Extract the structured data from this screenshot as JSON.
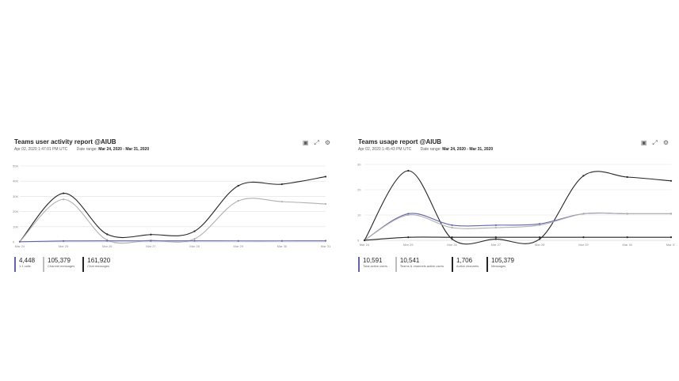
{
  "cards": [
    {
      "title": "Teams user activity report @AIUB",
      "timestamp": "Apr 02, 2020 1:47:01 PM UTC",
      "date_range_label": "Date range:",
      "date_range_value": "Mar 24, 2020 - Mar 31, 2020",
      "icons": [
        "excel-icon",
        "expand-icon",
        "gear-icon"
      ],
      "kpis": [
        {
          "value": "4,448",
          "label": "1:1 calls",
          "color": "#6264a7"
        },
        {
          "value": "105,379",
          "label": "Channel messages",
          "color": "#bdbdbd"
        },
        {
          "value": "161,920",
          "label": "Chat messages",
          "color": "#252423"
        }
      ]
    },
    {
      "title": "Teams usage report @AIUB",
      "timestamp": "Apr 02, 2020 1:45:43 PM UTC",
      "date_range_label": "Date range:",
      "date_range_value": "Mar 24, 2020 - Mar 31, 2020",
      "icons": [
        "excel-icon",
        "expand-icon",
        "gear-icon"
      ],
      "kpis": [
        {
          "value": "10,591",
          "label": "Total active users",
          "color": "#6264a7"
        },
        {
          "value": "10,541",
          "label": "Teams & channels active users",
          "color": "#bdbdbd"
        },
        {
          "value": "1,706",
          "label": "Active channels",
          "color": "#252423"
        },
        {
          "value": "105,379",
          "label": "Messages",
          "color": "#252423"
        }
      ]
    }
  ],
  "chart_data": [
    {
      "type": "line",
      "x": [
        "Mar 24",
        "Mar 25",
        "Mar 26",
        "Mar 27",
        "Mar 28",
        "Mar 29",
        "Mar 30",
        "Mar 31"
      ],
      "ylim": [
        0,
        50000
      ],
      "y_ticks": [
        "0",
        "10K",
        "20K",
        "30K",
        "40K",
        "50K"
      ],
      "grid": true,
      "series": [
        {
          "color": "#252423",
          "values": [
            200,
            32000,
            5000,
            4800,
            7000,
            37000,
            38000,
            43000
          ]
        },
        {
          "color": "#b0b0b0",
          "values": [
            200,
            28000,
            1200,
            1000,
            2000,
            27000,
            26500,
            25000
          ]
        },
        {
          "color": "#6264a7",
          "values": [
            100,
            600,
            700,
            650,
            700,
            650,
            650,
            700
          ]
        }
      ]
    },
    {
      "type": "line",
      "x": [
        "Mar 24",
        "Mar 25",
        "Mar 26",
        "Mar 27",
        "Mar 28",
        "Mar 29",
        "Mar 30",
        "Mar 31"
      ],
      "ylim": [
        0,
        30
      ],
      "y_ticks": [
        "0",
        "10",
        "20",
        "30"
      ],
      "grid": true,
      "series": [
        {
          "color": "#252423",
          "values": [
            0,
            27.5,
            0.5,
            0.5,
            0.5,
            25.5,
            25,
            23.5
          ]
        },
        {
          "color": "#6264a7",
          "values": [
            0,
            10.5,
            6,
            6,
            6.5,
            10.5,
            10.5,
            10.5
          ]
        },
        {
          "color": "#b0b0b0",
          "values": [
            0,
            10,
            5,
            5,
            6,
            10.5,
            10.5,
            10.5
          ]
        },
        {
          "color": "#252423",
          "values": [
            0,
            1.2,
            1.2,
            1.2,
            1.2,
            1.2,
            1.2,
            1.2
          ]
        }
      ]
    }
  ]
}
